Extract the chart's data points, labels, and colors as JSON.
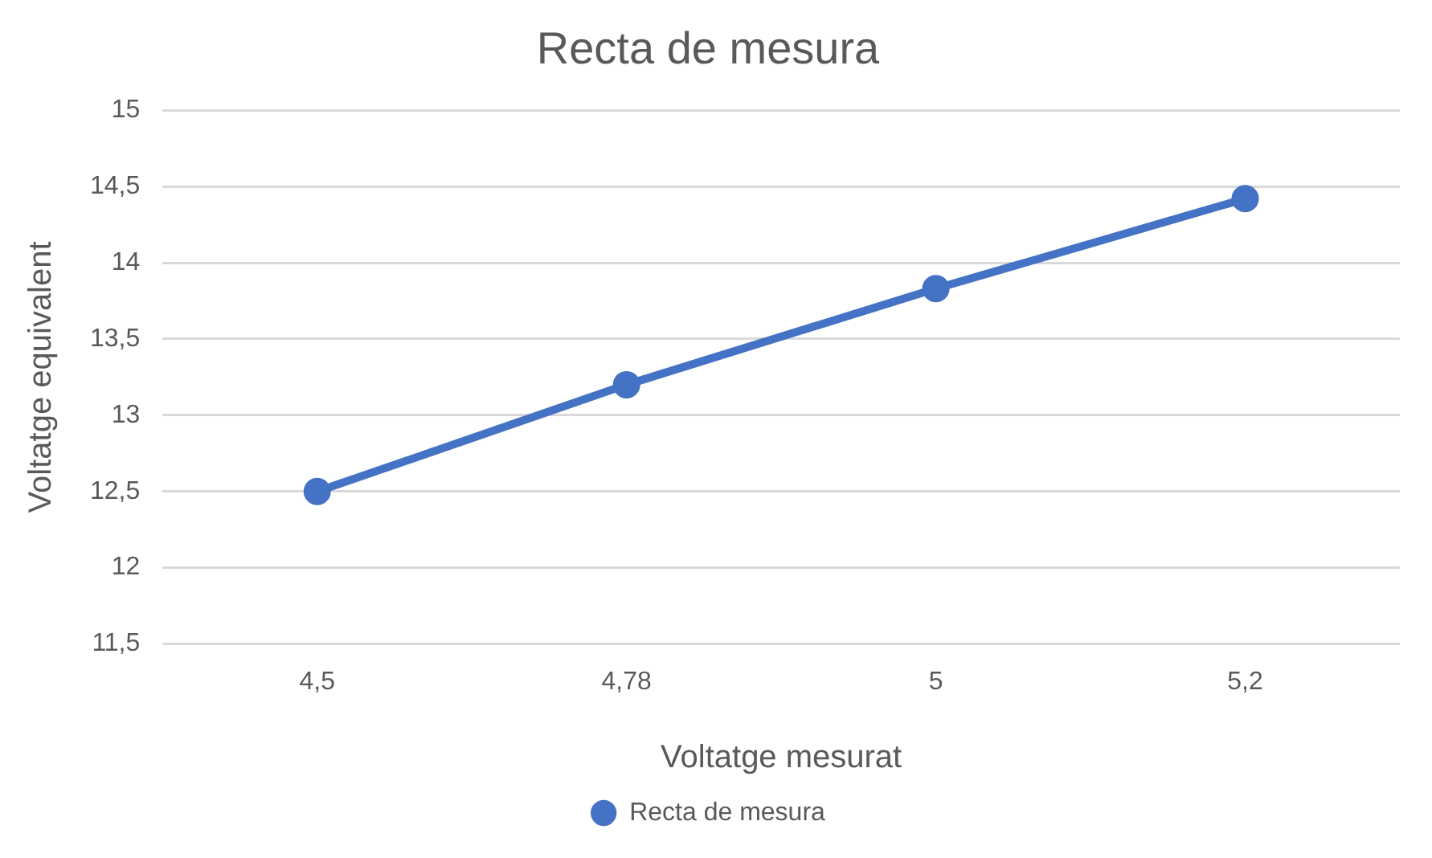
{
  "chart_data": {
    "type": "line",
    "title": "Recta de mesura",
    "xlabel": "Voltatge mesurat",
    "ylabel": "Voltatge equivalent",
    "categories": [
      "4,5",
      "4,78",
      "5",
      "5,2"
    ],
    "series": [
      {
        "name": "Recta de mesura",
        "color": "#4472c4",
        "values": [
          12.5,
          13.2,
          13.83,
          14.42
        ]
      }
    ],
    "ylim": [
      11.5,
      15
    ],
    "yticks": [
      {
        "value": 11.5,
        "label": "11,5"
      },
      12,
      {
        "value": 12.5,
        "label": "12,5"
      },
      13,
      {
        "value": 13.5,
        "label": "13,5"
      },
      14,
      {
        "value": 14.5,
        "label": "14,5"
      },
      15
    ],
    "grid": "y",
    "legend": "bottom",
    "marker": "circle",
    "line_style": "solid"
  }
}
